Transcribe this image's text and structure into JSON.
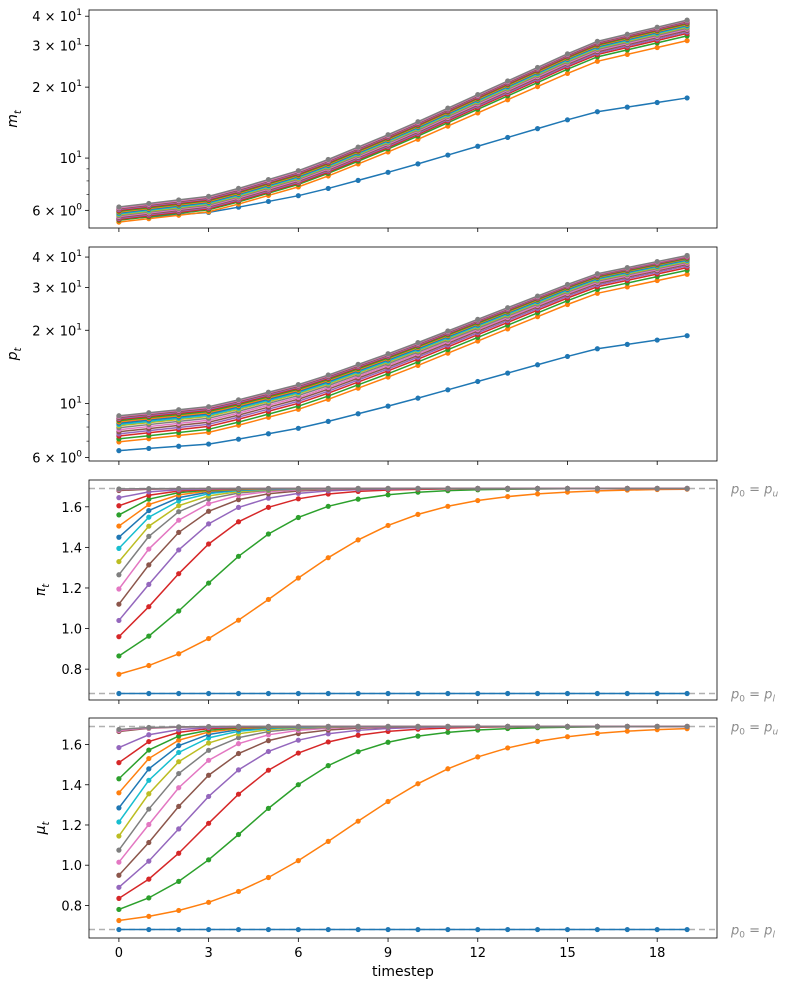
{
  "chart_data": [
    {
      "type": "line",
      "ylabel": "m_t",
      "yscale": "log",
      "ylim": [
        5.05,
        42.5
      ],
      "yticks_major": [
        {
          "value": 6,
          "label": "6 × 10^0"
        },
        {
          "value": 10,
          "label": "10^1"
        },
        {
          "value": 20,
          "label": "2 × 10^1"
        },
        {
          "value": 30,
          "label": "3 × 10^1"
        },
        {
          "value": 40,
          "label": "4 × 10^1"
        }
      ],
      "yticks_minor": [
        7,
        8,
        9
      ],
      "series_start": [
        5.5,
        5.35,
        5.45,
        5.5,
        5.55,
        5.6,
        5.65,
        5.7,
        5.75,
        5.8,
        5.85,
        5.9,
        5.95,
        6.0,
        6.05,
        6.1,
        6.15,
        6.2
      ],
      "series_end": [
        18.0,
        31.5,
        33.0,
        33.8,
        34.3,
        34.8,
        35.2,
        35.6,
        36.0,
        36.3,
        36.6,
        36.9,
        37.2,
        37.5,
        37.8,
        38.0,
        38.3,
        38.5
      ],
      "series_shape": [
        0.0,
        0.06,
        0.21,
        0.42,
        0.65,
        0.88,
        1.0
      ]
    },
    {
      "type": "line",
      "ylabel": "p_t",
      "yscale": "log",
      "ylim": [
        5.8,
        44.0
      ],
      "yticks_major": [
        {
          "value": 6,
          "label": "6 × 10^0"
        },
        {
          "value": 10,
          "label": "10^1"
        },
        {
          "value": 20,
          "label": "2 × 10^1"
        },
        {
          "value": 30,
          "label": "3 × 10^1"
        },
        {
          "value": 40,
          "label": "4 × 10^1"
        }
      ],
      "yticks_minor": [
        7,
        8,
        9
      ],
      "series_start": [
        6.4,
        6.95,
        7.15,
        7.35,
        7.5,
        7.65,
        7.8,
        7.95,
        8.1,
        8.2,
        8.3,
        8.4,
        8.5,
        8.6,
        8.68,
        8.76,
        8.84,
        8.9
      ],
      "series_end": [
        19.0,
        34.0,
        35.3,
        36.2,
        36.8,
        37.3,
        37.7,
        38.1,
        38.4,
        38.7,
        39.0,
        39.3,
        39.5,
        39.8,
        40.0,
        40.2,
        40.4,
        40.6
      ],
      "series_shape": [
        0.0,
        0.06,
        0.21,
        0.42,
        0.65,
        0.88,
        1.0
      ]
    },
    {
      "type": "line",
      "ylabel": "π_t",
      "yscale": "linear",
      "ylim": [
        0.648,
        1.732
      ],
      "yticks": [
        0.8,
        1.0,
        1.2,
        1.4,
        1.6
      ],
      "reference_lines": [
        {
          "value": 1.69,
          "label_main": "p",
          "label_sub_0": "0",
          "label_eq": " = p",
          "label_sub": "u"
        },
        {
          "value": 0.68,
          "label_main": "p",
          "label_sub_0": "0",
          "label_eq": " = p",
          "label_sub": "l"
        }
      ],
      "lower_bound": 0.68,
      "upper_bound": 1.69,
      "series_start": [
        0.68,
        0.775,
        0.865,
        0.96,
        1.04,
        1.12,
        1.195,
        1.265,
        1.33,
        1.395,
        1.45,
        1.505,
        1.56,
        1.605,
        1.645,
        1.68,
        1.685,
        1.688
      ],
      "series_speed": [
        0,
        0.42,
        0.55,
        0.65,
        0.72,
        0.78,
        0.83,
        0.87,
        0.9,
        0.93,
        0.95,
        0.97,
        0.99,
        1.0,
        1.02,
        1.04,
        1.05,
        1.06
      ]
    },
    {
      "type": "line",
      "ylabel": "μ_t",
      "yscale": "linear",
      "ylim": [
        0.638,
        1.732
      ],
      "yticks": [
        0.8,
        1.0,
        1.2,
        1.4,
        1.6
      ],
      "reference_lines": [
        {
          "value": 1.69,
          "label_main": "p",
          "label_sub_0": "0",
          "label_eq": " = p",
          "label_sub": "u"
        },
        {
          "value": 0.68,
          "label_main": "p",
          "label_sub_0": "0",
          "label_eq": " = p",
          "label_sub": "l"
        }
      ],
      "lower_bound": 0.68,
      "upper_bound": 1.69,
      "series_start": [
        0.68,
        0.725,
        0.78,
        0.835,
        0.89,
        0.95,
        1.015,
        1.075,
        1.145,
        1.215,
        1.285,
        1.36,
        1.43,
        1.51,
        1.585,
        1.665,
        1.67,
        1.675
      ],
      "series_speed": [
        0,
        0.4,
        0.52,
        0.6,
        0.66,
        0.72,
        0.77,
        0.82,
        0.86,
        0.9,
        0.93,
        0.95,
        0.97,
        0.99,
        1.0,
        1.02,
        1.04,
        1.05
      ]
    }
  ],
  "shared_x": {
    "xlabel": "timestep",
    "timesteps": [
      0,
      1,
      2,
      3,
      4,
      5,
      6,
      7,
      8,
      9,
      10,
      11,
      12,
      13,
      14,
      15,
      16,
      17,
      18,
      19
    ],
    "xlim": [
      -1.0,
      20.0
    ],
    "xticks": [
      0,
      3,
      6,
      9,
      12,
      15,
      18
    ]
  },
  "series_colors": [
    "#1f77b4",
    "#ff7f0e",
    "#2ca02c",
    "#d62728",
    "#9467bd",
    "#8c564b",
    "#e377c2",
    "#7f7f7f",
    "#bcbd22",
    "#17becf",
    "#1f77b4",
    "#ff7f0e",
    "#2ca02c",
    "#d62728",
    "#9467bd",
    "#8c564b",
    "#e377c2",
    "#7f7f7f"
  ]
}
